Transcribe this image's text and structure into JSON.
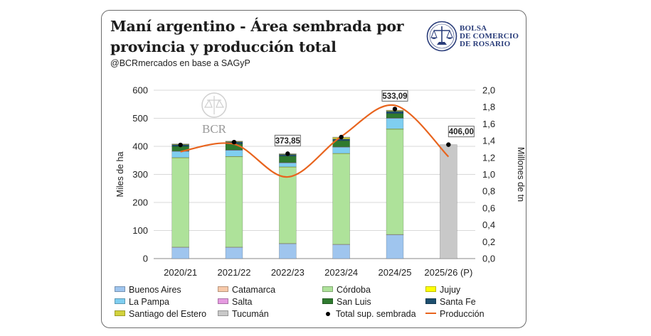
{
  "header": {
    "title": "Maní argentino - Área sembrada por provincia y producción total",
    "subtitle": "@BCRmercados en base a SAGyP"
  },
  "logo": {
    "lines": [
      "BOLSA",
      "DE COMERCIO",
      "DE ROSARIO"
    ],
    "watermark": "BCR",
    "color": "#2a3d7a"
  },
  "chart_data": {
    "type": "bar",
    "stacked": true,
    "categories": [
      "2020/21",
      "2021/22",
      "2022/23",
      "2023/24",
      "2024/25",
      "2025/26 (P)"
    ],
    "y_left": {
      "label": "Miles de ha",
      "range": [
        0,
        600
      ],
      "ticks": [
        "0",
        "100",
        "200",
        "300",
        "400",
        "500",
        "600"
      ]
    },
    "y_right": {
      "label": "Millones de tn",
      "range": [
        0,
        2.0
      ],
      "ticks": [
        "0,0",
        "0,2",
        "0,4",
        "0,6",
        "0,8",
        "1,0",
        "1,2",
        "1,4",
        "1,6",
        "1,8",
        "2,0"
      ]
    },
    "series": [
      {
        "name": "Buenos Aires",
        "color": "#9fc5ee",
        "values": [
          40,
          40,
          53,
          50,
          85,
          0
        ]
      },
      {
        "name": "Catamarca",
        "color": "#f7c9a9",
        "values": [
          1,
          1,
          1,
          1,
          1,
          0
        ]
      },
      {
        "name": "Córdoba",
        "color": "#aee29a",
        "values": [
          318,
          322,
          272,
          323,
          375,
          0
        ]
      },
      {
        "name": "Jujuy",
        "color": "#ffff00",
        "values": [
          1,
          1,
          1,
          1,
          1,
          0
        ]
      },
      {
        "name": "La Pampa",
        "color": "#7fcef0",
        "values": [
          22,
          22,
          14,
          22,
          38,
          0
        ]
      },
      {
        "name": "Salta",
        "color": "#e59be0",
        "values": [
          1,
          1,
          1,
          1,
          1,
          0
        ]
      },
      {
        "name": "San Luis",
        "color": "#2f7a2f",
        "values": [
          17,
          22,
          23,
          22,
          16,
          0
        ]
      },
      {
        "name": "Santa Fe",
        "color": "#1d4e6e",
        "values": [
          6,
          7,
          6,
          6,
          8,
          0
        ]
      },
      {
        "name": "Santiago del Estero",
        "color": "#d2d23c",
        "values": [
          2,
          2,
          2,
          6,
          3,
          0
        ]
      },
      {
        "name": "Tucumán",
        "color": "#c8c8c8",
        "values": [
          1,
          1,
          1,
          1,
          1,
          406
        ]
      }
    ],
    "total_sown": {
      "name": "Total sup. sembrada",
      "values": [
        405,
        415,
        373.85,
        433,
        533.09,
        406
      ],
      "labels": [
        "",
        "",
        "373,85",
        "",
        "533,09",
        "406,00"
      ]
    },
    "production": {
      "name": "Producción",
      "axis": "right",
      "color": "#e8641e",
      "values": [
        1.27,
        1.36,
        0.97,
        1.45,
        1.82,
        1.21
      ]
    },
    "legend": {
      "placement": "bottom",
      "items": [
        "Buenos Aires",
        "Catamarca",
        "Córdoba",
        "Jujuy",
        "La Pampa",
        "Salta",
        "San Luis",
        "Santa Fe",
        "Santiago del Estero",
        "Tucumán",
        "Total sup. sembrada",
        "Producción"
      ]
    },
    "grid": true
  }
}
